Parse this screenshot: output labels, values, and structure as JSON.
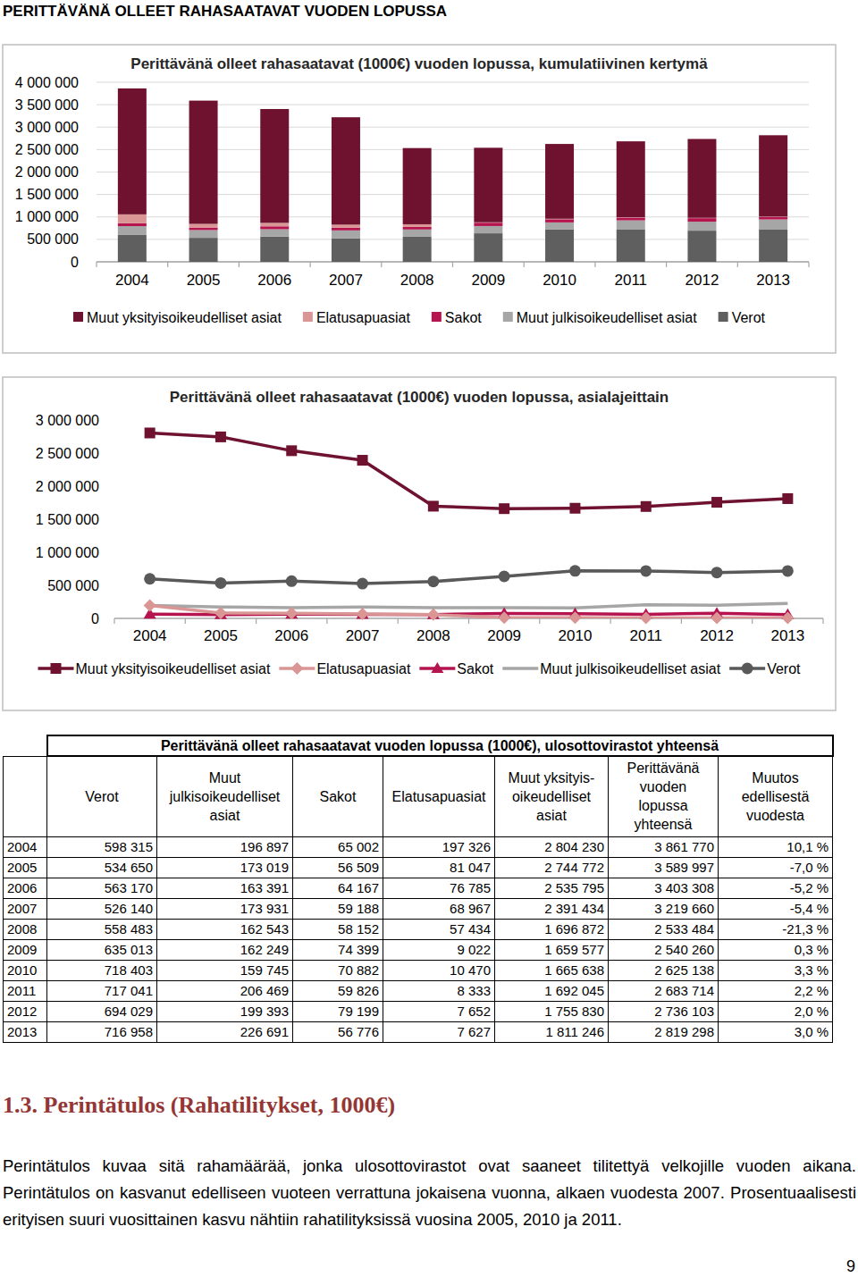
{
  "header": {
    "title": "PERITTÄVÄNÄ OLLEET RAHASAATAVAT VUODEN LOPUSSA"
  },
  "chart_data": [
    {
      "type": "bar",
      "stacked": true,
      "grid": true,
      "legend": "bottom",
      "title": "Perittävänä olleet rahasaatavat (1000€) vuoden lopussa, kumulatiivinen kertymä",
      "categories": [
        "2004",
        "2005",
        "2006",
        "2007",
        "2008",
        "2009",
        "2010",
        "2011",
        "2012",
        "2013"
      ],
      "ylim": [
        0,
        4000000
      ],
      "yticks": [
        0,
        {
          "value": 500000,
          "label": "500 000"
        },
        {
          "value": 1000000,
          "label": "1 000 000"
        },
        {
          "value": 1500000,
          "label": "1 500 000"
        },
        {
          "value": 2000000,
          "label": "2 000 000"
        },
        {
          "value": 2500000,
          "label": "2 500 000"
        },
        {
          "value": 3000000,
          "label": "3 000 000"
        },
        {
          "value": 3500000,
          "label": "3 500 000"
        },
        {
          "value": 4000000,
          "label": "4 000 000"
        }
      ],
      "series": [
        {
          "name": "Muut yksityisoikeudelliset asiat",
          "color": "#6e1230",
          "values": [
            2804230,
            2744772,
            2535795,
            2391434,
            1696872,
            1659577,
            1665638,
            1692045,
            1755830,
            1811246
          ]
        },
        {
          "name": "Elatusapuasiat",
          "color": "#d99694",
          "values": [
            197326,
            81047,
            76785,
            68967,
            57434,
            9022,
            10470,
            8333,
            7652,
            7627
          ]
        },
        {
          "name": "Sakot",
          "color": "#b5144f",
          "values": [
            65002,
            56509,
            64167,
            59188,
            58152,
            74399,
            70882,
            59826,
            79199,
            56776
          ]
        },
        {
          "name": "Muut julkisoikeudelliset asiat",
          "color": "#a6a6a6",
          "values": [
            196897,
            173019,
            163391,
            173931,
            162543,
            162249,
            159745,
            206469,
            199393,
            226691
          ]
        },
        {
          "name": "Verot",
          "color": "#5f5f5f",
          "values": [
            598315,
            534650,
            563170,
            526140,
            558483,
            635013,
            718403,
            717041,
            694029,
            716958
          ]
        }
      ]
    },
    {
      "type": "line",
      "grid": false,
      "legend": "bottom",
      "title": "Perittävänä olleet rahasaatavat (1000€) vuoden lopussa, asialajeittain",
      "categories": [
        "2004",
        "2005",
        "2006",
        "2007",
        "2008",
        "2009",
        "2010",
        "2011",
        "2012",
        "2013"
      ],
      "ylim": [
        0,
        3000000
      ],
      "yticks": [
        0,
        {
          "value": 500000,
          "label": "500 000"
        },
        {
          "value": 1000000,
          "label": "1 000 000"
        },
        {
          "value": 1500000,
          "label": "1 500 000"
        },
        {
          "value": 2000000,
          "label": "2 000 000"
        },
        {
          "value": 2500000,
          "label": "2 500 000"
        },
        {
          "value": 3000000,
          "label": "3 000 000"
        }
      ],
      "series": [
        {
          "name": "Muut yksityisoikeudelliset asiat",
          "color": "#6e1230",
          "marker": "square",
          "values": [
            2804230,
            2744772,
            2535795,
            2391434,
            1696872,
            1659577,
            1665638,
            1692045,
            1755830,
            1811246
          ]
        },
        {
          "name": "Elatusapuasiat",
          "color": "#d99694",
          "marker": "diamond",
          "values": [
            197326,
            81047,
            76785,
            68967,
            57434,
            9022,
            10470,
            8333,
            7652,
            7627
          ]
        },
        {
          "name": "Sakot",
          "color": "#b5144f",
          "marker": "triangle",
          "values": [
            65002,
            56509,
            64167,
            59188,
            58152,
            74399,
            70882,
            59826,
            79199,
            56776
          ]
        },
        {
          "name": "Muut julkisoikeudelliset asiat",
          "color": "#a6a6a6",
          "marker": "none",
          "values": [
            196897,
            173019,
            163391,
            173931,
            162543,
            162249,
            159745,
            206469,
            199393,
            226691
          ]
        },
        {
          "name": "Verot",
          "color": "#595959",
          "marker": "circle",
          "values": [
            598315,
            534650,
            563170,
            526140,
            558483,
            635013,
            718403,
            717041,
            694029,
            716958
          ]
        }
      ]
    }
  ],
  "table": {
    "title": "Perittävänä olleet rahasaatavat vuoden lopussa (1000€), ulosottovirastot yhteensä",
    "columns": [
      "Verot",
      "Muut\njulkisoikeudelliset\nasiat",
      "Sakot",
      "Elatusapuasiat",
      "Muut yksityis-\noikeudelliset\nasiat",
      "Perittävänä\nvuoden\nlopussa\nyhteensä",
      "Muutos\nedellisestä\nvuodesta"
    ],
    "rows": [
      [
        "2004",
        "598 315",
        "196 897",
        "65 002",
        "197 326",
        "2 804 230",
        "3 861 770",
        "10,1 %"
      ],
      [
        "2005",
        "534 650",
        "173 019",
        "56 509",
        "81 047",
        "2 744 772",
        "3 589 997",
        "-7,0 %"
      ],
      [
        "2006",
        "563 170",
        "163 391",
        "64 167",
        "76 785",
        "2 535 795",
        "3 403 308",
        "-5,2 %"
      ],
      [
        "2007",
        "526 140",
        "173 931",
        "59 188",
        "68 967",
        "2 391 434",
        "3 219 660",
        "-5,4 %"
      ],
      [
        "2008",
        "558 483",
        "162 543",
        "58 152",
        "57 434",
        "1 696 872",
        "2 533 484",
        "-21,3 %"
      ],
      [
        "2009",
        "635 013",
        "162 249",
        "74 399",
        "9 022",
        "1 659 577",
        "2 540 260",
        "0,3 %"
      ],
      [
        "2010",
        "718 403",
        "159 745",
        "70 882",
        "10 470",
        "1 665 638",
        "2 625 138",
        "3,3 %"
      ],
      [
        "2011",
        "717 041",
        "206 469",
        "59 826",
        "8 333",
        "1 692 045",
        "2 683 714",
        "2,2 %"
      ],
      [
        "2012",
        "694 029",
        "199 393",
        "79 199",
        "7 652",
        "1 755 830",
        "2 736 103",
        "2,0 %"
      ],
      [
        "2013",
        "716 958",
        "226 691",
        "56 776",
        "7 627",
        "1 811 246",
        "2 819 298",
        "3,0 %"
      ]
    ]
  },
  "section": {
    "heading": "1.3. Perintätulos (Rahatilitykset, 1000€)",
    "text": "Perintätulos kuvaa sitä rahamäärää, jonka ulosottovirastot ovat saaneet tilitettyä velkojille vuoden aikana. Perintätulos on kasvanut edelliseen vuoteen verrattuna jokaisena vuonna, alkaen vuodesta 2007. Prosentuaalisesti erityisen suuri vuosittainen kasvu nähtiin rahatilityksissä vuosina 2005, 2010 ja 2011."
  },
  "page_number": "9"
}
